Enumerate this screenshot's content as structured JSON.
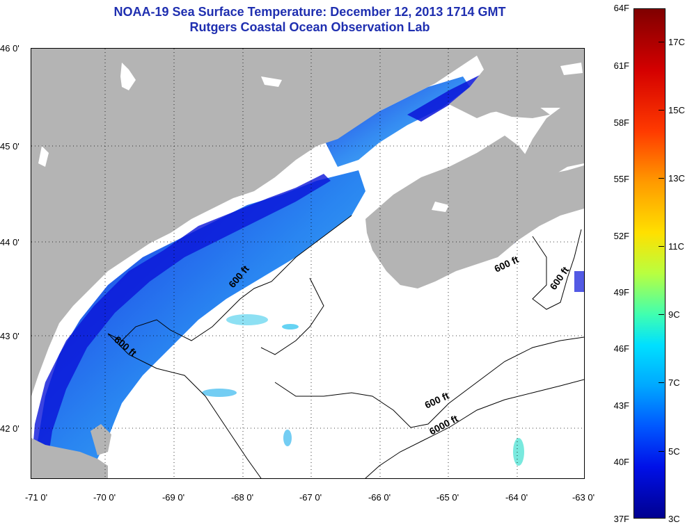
{
  "title": {
    "line1": "NOAA-19 Sea Surface Temperature:  December 12, 2013 1714 GMT",
    "line2": "Rutgers Coastal Ocean Observation Lab"
  },
  "lat_labels": [
    "46 0'",
    "45 0'",
    "44 0'",
    "43 0'",
    "42 0'"
  ],
  "lon_labels": [
    "-71 0'",
    "-70 0'",
    "-69 0'",
    "-68 0'",
    "-67 0'",
    "-66 0'",
    "-65 0'",
    "-64 0'",
    "-63 0'"
  ],
  "contour_labels": [
    "600 ft",
    "600 ft",
    "600 ft",
    "600 ft",
    "600 ft",
    "6000 ft"
  ],
  "colorbar": {
    "fahrenheit": [
      "64F",
      "61F",
      "58F",
      "55F",
      "52F",
      "49F",
      "46F",
      "43F",
      "40F",
      "37F"
    ],
    "celsius": [
      "17C",
      "15C",
      "13C",
      "11C",
      "9C",
      "7C",
      "5C",
      "3C"
    ]
  },
  "colors": {
    "land": "#b4b4b4",
    "title": "#1f2fb0",
    "cold": "#0a14d8",
    "cool": "#1aa8f0"
  }
}
